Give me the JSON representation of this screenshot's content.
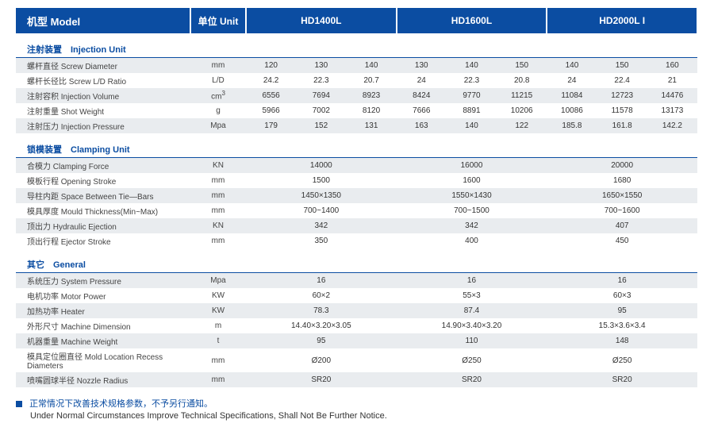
{
  "colors": {
    "brand": "#0b4da2",
    "row_alt": "#e9ecef",
    "text": "#333"
  },
  "header": {
    "model_label": "机型 Model",
    "unit_label": "单位 Unit",
    "models": [
      "HD1400L",
      "HD1600L",
      "HD2000L I"
    ]
  },
  "columns": {
    "label_width": 220,
    "unit_width": 70,
    "model_group_subcols": 3
  },
  "sections": [
    {
      "title": "注射装置　Injection Unit",
      "rows": [
        {
          "label": "螺杆直径 Screw Diameter",
          "unit": "mm",
          "v": [
            [
              "120",
              "130",
              "140"
            ],
            [
              "130",
              "140",
              "150"
            ],
            [
              "140",
              "150",
              "160"
            ]
          ]
        },
        {
          "label": "螺杆长径比 Screw L/D Ratio",
          "unit": "L/D",
          "v": [
            [
              "24.2",
              "22.3",
              "20.7"
            ],
            [
              "24",
              "22.3",
              "20.8"
            ],
            [
              "24",
              "22.4",
              "21"
            ]
          ]
        },
        {
          "label": "注射容积 Injection Volume",
          "unit": "cm³",
          "v": [
            [
              "6556",
              "7694",
              "8923"
            ],
            [
              "8424",
              "9770",
              "11215"
            ],
            [
              "11084",
              "12723",
              "14476"
            ]
          ]
        },
        {
          "label": "注射重量 Shot Weight",
          "unit": "g",
          "v": [
            [
              "5966",
              "7002",
              "8120"
            ],
            [
              "7666",
              "8891",
              "10206"
            ],
            [
              "10086",
              "11578",
              "13173"
            ]
          ]
        },
        {
          "label": "注射压力 Injection Pressure",
          "unit": "Mpa",
          "v": [
            [
              "179",
              "152",
              "131"
            ],
            [
              "163",
              "140",
              "122"
            ],
            [
              "185.8",
              "161.8",
              "142.2"
            ]
          ]
        }
      ]
    },
    {
      "title": "锁模装置　Clamping Unit",
      "rows": [
        {
          "label": "合模力 Clamping Force",
          "unit": "KN",
          "v": [
            [
              "14000"
            ],
            [
              "16000"
            ],
            [
              "20000"
            ]
          ]
        },
        {
          "label": "模板行程 Opening Stroke",
          "unit": "mm",
          "v": [
            [
              "1500"
            ],
            [
              "1600"
            ],
            [
              "1680"
            ]
          ]
        },
        {
          "label": "导柱内距 Space Between Tie—Bars",
          "unit": "mm",
          "v": [
            [
              "1450×1350"
            ],
            [
              "1550×1430"
            ],
            [
              "1650×1550"
            ]
          ]
        },
        {
          "label": "模具厚度 Mould Thickness(Min~Max)",
          "unit": "mm",
          "v": [
            [
              "700~1400"
            ],
            [
              "700~1500"
            ],
            [
              "700~1600"
            ]
          ]
        },
        {
          "label": "顶出力 Hydraulic Ejection",
          "unit": "KN",
          "v": [
            [
              "342"
            ],
            [
              "342"
            ],
            [
              "407"
            ]
          ]
        },
        {
          "label": "顶出行程 Ejector Stroke",
          "unit": "mm",
          "v": [
            [
              "350"
            ],
            [
              "400"
            ],
            [
              "450"
            ]
          ]
        }
      ]
    },
    {
      "title": "其它　General",
      "rows": [
        {
          "label": "系统压力 System Pressure",
          "unit": "Mpa",
          "v": [
            [
              "16"
            ],
            [
              "16"
            ],
            [
              "16"
            ]
          ]
        },
        {
          "label": "电机功率 Motor Power",
          "unit": "KW",
          "v": [
            [
              "60×2"
            ],
            [
              "55×3"
            ],
            [
              "60×3"
            ]
          ]
        },
        {
          "label": "加热功率 Heater",
          "unit": "KW",
          "v": [
            [
              "78.3"
            ],
            [
              "87.4"
            ],
            [
              "95"
            ]
          ]
        },
        {
          "label": "外形尺寸 Machine Dimension",
          "unit": "m",
          "v": [
            [
              "14.40×3.20×3.05"
            ],
            [
              "14.90×3.40×3.20"
            ],
            [
              "15.3×3.6×3.4"
            ]
          ]
        },
        {
          "label": "机器重量 Machine Weight",
          "unit": "t",
          "v": [
            [
              "95"
            ],
            [
              "110"
            ],
            [
              "148"
            ]
          ]
        },
        {
          "label": "模具定位圈直径 Mold Location Recess Diameters",
          "unit": "mm",
          "v": [
            [
              "Ø200"
            ],
            [
              "Ø250"
            ],
            [
              "Ø250"
            ]
          ]
        },
        {
          "label": "喷嘴圆球半径 Nozzle Radius",
          "unit": "mm",
          "v": [
            [
              "SR20"
            ],
            [
              "SR20"
            ],
            [
              "SR20"
            ]
          ]
        }
      ]
    }
  ],
  "footer": {
    "zh": "正常情况下改善技术规格参数，不予另行通知。",
    "en": "Under Normal Circumstances Improve Technical Specifications, Shall Not Be Further Notice."
  }
}
